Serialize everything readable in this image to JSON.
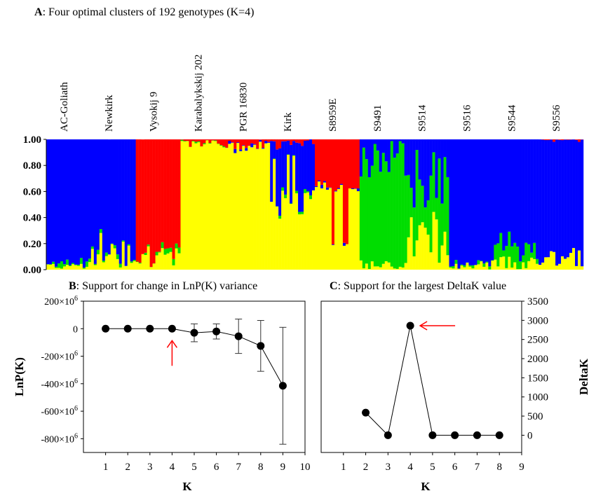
{
  "chart_data": [
    {
      "panel": "A",
      "type": "bar",
      "subtype": "stacked-structure-plot",
      "title_prefix": "A",
      "title": ": Four optimal clusters of 192 genotypes (K=4)",
      "n_genotypes": 192,
      "ylim": [
        0,
        1
      ],
      "yticks": [
        0,
        0.2,
        0.4,
        0.6,
        0.8,
        1.0
      ],
      "ytick_labels": [
        "0.00",
        "0.20",
        "0.40",
        "0.60",
        "0.80",
        "1.00"
      ],
      "colors": {
        "cluster1": "#0000ff",
        "cluster2": "#ff0000",
        "cluster3": "#ffff00",
        "cluster4": "#00dd00"
      },
      "segments": [
        {
          "start": 0,
          "end": 16,
          "label": "AC-Goliath",
          "main": "blue",
          "mix": [
            [
              "yellow",
              0.02,
              0.06
            ],
            [
              "green",
              0.0,
              0.06
            ]
          ]
        },
        {
          "start": 16,
          "end": 32,
          "label": "Newkirk",
          "main": "blue",
          "mix": [
            [
              "yellow",
              0.05,
              0.3
            ],
            [
              "green",
              0.0,
              0.04
            ]
          ]
        },
        {
          "start": 32,
          "end": 48,
          "label": "Vysokij 9",
          "main": "red",
          "mix": [
            [
              "yellow",
              0.0,
              0.25
            ],
            [
              "green",
              0.0,
              0.05
            ]
          ]
        },
        {
          "start": 48,
          "end": 64,
          "label": "Karabalykskij 202",
          "main": "yellow",
          "mix": [
            [
              "red",
              0.0,
              0.06
            ],
            [
              "green",
              0.0,
              0.02
            ]
          ]
        },
        {
          "start": 64,
          "end": 80,
          "label": "PGR 16830",
          "main": "yellow",
          "mix": [
            [
              "red",
              0.0,
              0.08
            ],
            [
              "blue",
              0.0,
              0.04
            ]
          ]
        },
        {
          "start": 80,
          "end": 96,
          "label": "Kirk",
          "main": "yellow",
          "mix": [
            [
              "blue",
              0.35,
              0.55
            ],
            [
              "red",
              0.0,
              0.08
            ],
            [
              "green",
              0.0,
              0.04
            ]
          ]
        },
        {
          "start": 96,
          "end": 112,
          "label": "S8959E",
          "main": "red",
          "mix": [
            [
              "yellow",
              0.6,
              0.68
            ],
            [
              "blue",
              0.0,
              0.03
            ]
          ]
        },
        {
          "start": 112,
          "end": 128,
          "label": "S9491",
          "main": "green",
          "mix": [
            [
              "blue",
              0.0,
              0.3
            ],
            [
              "yellow",
              0.0,
              0.08
            ]
          ]
        },
        {
          "start": 128,
          "end": 144,
          "label": "S9514",
          "main": "green",
          "mix": [
            [
              "yellow",
              0.15,
              0.45
            ],
            [
              "blue",
              0.25,
              0.55
            ]
          ]
        },
        {
          "start": 144,
          "end": 160,
          "label": "S9516",
          "main": "blue",
          "mix": [
            [
              "yellow",
              0.0,
              0.08
            ],
            [
              "green",
              0.0,
              0.04
            ]
          ]
        },
        {
          "start": 160,
          "end": 176,
          "label": "S9544",
          "main": "blue",
          "mix": [
            [
              "green",
              0.1,
              0.2
            ],
            [
              "yellow",
              0.0,
              0.12
            ]
          ]
        },
        {
          "start": 176,
          "end": 192,
          "label": "S9556",
          "main": "blue",
          "mix": [
            [
              "yellow",
              0.0,
              0.2
            ],
            [
              "red",
              0.0,
              0.02
            ]
          ]
        }
      ]
    },
    {
      "panel": "B",
      "type": "line",
      "title_prefix": "B",
      "title": ": Support for change in LnP(K) variance",
      "xlabel": "K",
      "ylabel": "LnP(K)",
      "xlim": [
        0,
        10
      ],
      "xticks": [
        1,
        2,
        3,
        4,
        5,
        6,
        7,
        8,
        9,
        10
      ],
      "ylim": [
        -900,
        200
      ],
      "yticks": [
        200,
        0,
        -200,
        -400,
        -600,
        -800
      ],
      "ytick_labels": [
        "200×10",
        "0",
        "-200×10",
        "-400×10",
        "-600×10",
        "-800×10"
      ],
      "ytick_exponent": "6",
      "x": [
        1,
        2,
        3,
        4,
        5,
        6,
        7,
        8,
        9
      ],
      "y": [
        0,
        0,
        0,
        0,
        -30,
        -20,
        -55,
        -125,
        -415
      ],
      "yerr": [
        0,
        0,
        0,
        0,
        65,
        55,
        125,
        185,
        425
      ],
      "arrow_at_k": 4
    },
    {
      "panel": "C",
      "type": "line",
      "title_prefix": "C",
      "title": ": Support for the largest DeltaK value",
      "xlabel": "K",
      "ylabel": "DeltaK",
      "xlim": [
        0,
        9
      ],
      "xticks": [
        1,
        2,
        3,
        4,
        5,
        6,
        7,
        8,
        9
      ],
      "ylim": [
        -450,
        3500
      ],
      "yticks": [
        0,
        500,
        1000,
        1500,
        2000,
        2500,
        3000,
        3500
      ],
      "x": [
        2,
        3,
        4,
        5,
        6,
        7,
        8
      ],
      "y": [
        590,
        0,
        2860,
        0,
        0,
        0,
        0
      ],
      "arrow_at_k": 4
    }
  ]
}
